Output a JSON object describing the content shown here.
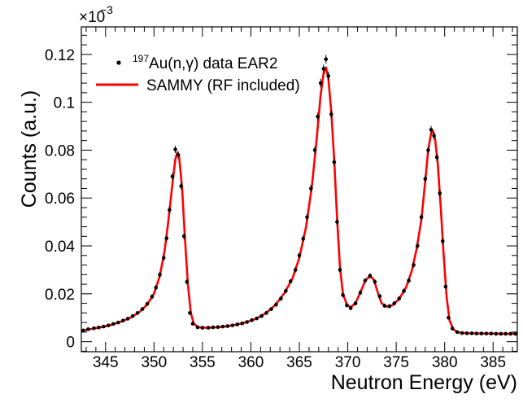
{
  "chart_data": {
    "type": "scatter",
    "xlabel": "Neutron Energy (eV)",
    "ylabel": "Counts (a.u.)",
    "y_multiplier": {
      "base": "×10",
      "exponent": "−3"
    },
    "xlim": [
      342.5,
      387.5
    ],
    "ylim": [
      -0.0042,
      0.1315
    ],
    "x_ticks": [
      345,
      350,
      355,
      360,
      365,
      370,
      375,
      380,
      385
    ],
    "x_tick_labels": [
      "345",
      "350",
      "355",
      "360",
      "365",
      "370",
      "375",
      "380",
      "385"
    ],
    "y_ticks": [
      0,
      0.02,
      0.04,
      0.06,
      0.08,
      0.1,
      0.12
    ],
    "y_tick_labels": [
      "0",
      "0.02",
      "0.04",
      "0.06",
      "0.08",
      "0.1",
      "0.12"
    ],
    "grid": false,
    "legend": {
      "placement": "top-left",
      "entries": [
        {
          "sup": "197",
          "text": "Au(n,γ) data EAR2",
          "marker": "point"
        },
        {
          "text": "SAMMY (RF included)",
          "marker": "line"
        }
      ]
    },
    "series": [
      {
        "name": "197Au(n,γ) data EAR2",
        "kind": "points",
        "color": "#000000",
        "points": [
          [
            342.7,
            0.0047,
            0.0006
          ],
          [
            343.2,
            0.0052,
            0.0006
          ],
          [
            343.8,
            0.0056,
            0.0006
          ],
          [
            344.3,
            0.0059,
            0.0006
          ],
          [
            344.8,
            0.0063,
            0.0006
          ],
          [
            345.3,
            0.0068,
            0.0006
          ],
          [
            345.8,
            0.0074,
            0.0006
          ],
          [
            346.3,
            0.008,
            0.0006
          ],
          [
            346.8,
            0.0088,
            0.0007
          ],
          [
            347.3,
            0.0096,
            0.0007
          ],
          [
            347.8,
            0.0107,
            0.0007
          ],
          [
            348.3,
            0.012,
            0.0008
          ],
          [
            348.8,
            0.0136,
            0.0008
          ],
          [
            349.3,
            0.0158,
            0.0009
          ],
          [
            349.8,
            0.0188,
            0.001
          ],
          [
            350.2,
            0.0226,
            0.001
          ],
          [
            350.6,
            0.028,
            0.0011
          ],
          [
            351.0,
            0.035,
            0.0012
          ],
          [
            351.3,
            0.0432,
            0.0013
          ],
          [
            351.6,
            0.055,
            0.0014
          ],
          [
            351.9,
            0.069,
            0.0014
          ],
          [
            352.2,
            0.0803,
            0.0015
          ],
          [
            352.5,
            0.078,
            0.0015
          ],
          [
            352.8,
            0.065,
            0.0014
          ],
          [
            353.1,
            0.044,
            0.0013
          ],
          [
            353.4,
            0.025,
            0.0011
          ],
          [
            353.7,
            0.012,
            0.0008
          ],
          [
            354.0,
            0.0075,
            0.0006
          ],
          [
            354.5,
            0.006,
            0.0006
          ],
          [
            355.0,
            0.0058,
            0.0006
          ],
          [
            355.6,
            0.0058,
            0.0006
          ],
          [
            356.1,
            0.006,
            0.0006
          ],
          [
            356.6,
            0.0061,
            0.0006
          ],
          [
            357.1,
            0.0063,
            0.0006
          ],
          [
            357.6,
            0.0065,
            0.0006
          ],
          [
            358.1,
            0.0068,
            0.0006
          ],
          [
            358.6,
            0.0072,
            0.0006
          ],
          [
            359.1,
            0.0076,
            0.0006
          ],
          [
            359.6,
            0.0082,
            0.0006
          ],
          [
            360.1,
            0.009,
            0.0007
          ],
          [
            360.6,
            0.0097,
            0.0007
          ],
          [
            361.1,
            0.0107,
            0.0007
          ],
          [
            361.6,
            0.012,
            0.0008
          ],
          [
            362.1,
            0.0136,
            0.0008
          ],
          [
            362.6,
            0.0155,
            0.0008
          ],
          [
            363.1,
            0.018,
            0.0009
          ],
          [
            363.6,
            0.0212,
            0.001
          ],
          [
            364.1,
            0.0252,
            0.001
          ],
          [
            364.6,
            0.03,
            0.0011
          ],
          [
            365.0,
            0.036,
            0.0012
          ],
          [
            365.4,
            0.043,
            0.0013
          ],
          [
            365.8,
            0.052,
            0.0014
          ],
          [
            366.2,
            0.064,
            0.0015
          ],
          [
            366.6,
            0.08,
            0.0016
          ],
          [
            366.9,
            0.094,
            0.0017
          ],
          [
            367.2,
            0.108,
            0.0018
          ],
          [
            367.5,
            0.114,
            0.0018
          ],
          [
            367.75,
            0.118,
            0.0018
          ],
          [
            368.0,
            0.111,
            0.0018
          ],
          [
            368.3,
            0.095,
            0.0017
          ],
          [
            368.6,
            0.075,
            0.0016
          ],
          [
            368.9,
            0.05,
            0.0014
          ],
          [
            369.2,
            0.03,
            0.0011
          ],
          [
            369.5,
            0.0195,
            0.001
          ],
          [
            369.9,
            0.0152,
            0.0009
          ],
          [
            370.3,
            0.014,
            0.0009
          ],
          [
            370.8,
            0.016,
            0.0009
          ],
          [
            371.3,
            0.0205,
            0.001
          ],
          [
            371.8,
            0.0255,
            0.001
          ],
          [
            372.3,
            0.0275,
            0.0011
          ],
          [
            372.8,
            0.025,
            0.001
          ],
          [
            373.3,
            0.019,
            0.0009
          ],
          [
            373.8,
            0.015,
            0.0009
          ],
          [
            374.3,
            0.0148,
            0.0009
          ],
          [
            374.8,
            0.016,
            0.0009
          ],
          [
            375.3,
            0.018,
            0.0009
          ],
          [
            375.8,
            0.0212,
            0.001
          ],
          [
            376.3,
            0.0255,
            0.001
          ],
          [
            376.8,
            0.032,
            0.0011
          ],
          [
            377.2,
            0.04,
            0.0012
          ],
          [
            377.6,
            0.052,
            0.0013
          ],
          [
            378.0,
            0.068,
            0.0015
          ],
          [
            378.3,
            0.08,
            0.0016
          ],
          [
            378.6,
            0.0885,
            0.0016
          ],
          [
            378.9,
            0.086,
            0.0016
          ],
          [
            379.2,
            0.077,
            0.0015
          ],
          [
            379.5,
            0.062,
            0.0014
          ],
          [
            379.8,
            0.042,
            0.0013
          ],
          [
            380.1,
            0.023,
            0.001
          ],
          [
            380.4,
            0.01,
            0.0007
          ],
          [
            380.8,
            0.0055,
            0.0006
          ],
          [
            381.3,
            0.004,
            0.0005
          ],
          [
            381.8,
            0.0036,
            0.0005
          ],
          [
            382.3,
            0.0035,
            0.0005
          ],
          [
            382.8,
            0.0035,
            0.0005
          ],
          [
            383.3,
            0.0034,
            0.0005
          ],
          [
            383.8,
            0.0034,
            0.0005
          ],
          [
            384.3,
            0.0034,
            0.0005
          ],
          [
            384.8,
            0.0034,
            0.0005
          ],
          [
            385.3,
            0.0033,
            0.0005
          ],
          [
            385.8,
            0.0033,
            0.0005
          ],
          [
            386.3,
            0.0033,
            0.0005
          ],
          [
            386.8,
            0.0033,
            0.0005
          ],
          [
            387.3,
            0.0033,
            0.0005
          ]
        ]
      },
      {
        "name": "SAMMY (RF included)",
        "kind": "line",
        "color": "#ff0000",
        "points": [
          [
            342.5,
            0.0045
          ],
          [
            343.5,
            0.0053
          ],
          [
            344.5,
            0.006
          ],
          [
            345.5,
            0.0069
          ],
          [
            346.5,
            0.0082
          ],
          [
            347.5,
            0.0098
          ],
          [
            348.5,
            0.0124
          ],
          [
            349.3,
            0.0155
          ],
          [
            350.0,
            0.02
          ],
          [
            350.6,
            0.0275
          ],
          [
            351.1,
            0.038
          ],
          [
            351.5,
            0.051
          ],
          [
            351.9,
            0.066
          ],
          [
            352.2,
            0.076
          ],
          [
            352.4,
            0.079
          ],
          [
            352.6,
            0.077
          ],
          [
            352.9,
            0.064
          ],
          [
            353.2,
            0.043
          ],
          [
            353.5,
            0.024
          ],
          [
            353.8,
            0.012
          ],
          [
            354.1,
            0.0075
          ],
          [
            354.6,
            0.006
          ],
          [
            355.5,
            0.0058
          ],
          [
            356.5,
            0.006
          ],
          [
            357.5,
            0.0064
          ],
          [
            358.5,
            0.0071
          ],
          [
            359.5,
            0.0081
          ],
          [
            360.5,
            0.0095
          ],
          [
            361.5,
            0.0118
          ],
          [
            362.5,
            0.0152
          ],
          [
            363.5,
            0.0205
          ],
          [
            364.3,
            0.0265
          ],
          [
            365.0,
            0.035
          ],
          [
            365.7,
            0.048
          ],
          [
            366.3,
            0.065
          ],
          [
            366.8,
            0.085
          ],
          [
            367.2,
            0.103
          ],
          [
            367.5,
            0.112
          ],
          [
            367.75,
            0.1145
          ],
          [
            368.0,
            0.11
          ],
          [
            368.3,
            0.096
          ],
          [
            368.6,
            0.076
          ],
          [
            368.9,
            0.051
          ],
          [
            369.2,
            0.031
          ],
          [
            369.5,
            0.02
          ],
          [
            369.9,
            0.0155
          ],
          [
            370.3,
            0.0143
          ],
          [
            370.8,
            0.0162
          ],
          [
            371.3,
            0.0205
          ],
          [
            371.8,
            0.0255
          ],
          [
            372.3,
            0.0275
          ],
          [
            372.7,
            0.0258
          ],
          [
            373.1,
            0.0205
          ],
          [
            373.5,
            0.016
          ],
          [
            374.0,
            0.0146
          ],
          [
            374.6,
            0.0152
          ],
          [
            375.3,
            0.0178
          ],
          [
            376.0,
            0.0225
          ],
          [
            376.6,
            0.0295
          ],
          [
            377.1,
            0.0385
          ],
          [
            377.6,
            0.051
          ],
          [
            378.0,
            0.067
          ],
          [
            378.3,
            0.08
          ],
          [
            378.6,
            0.087
          ],
          [
            378.8,
            0.088
          ],
          [
            379.0,
            0.085
          ],
          [
            379.3,
            0.074
          ],
          [
            379.6,
            0.056
          ],
          [
            379.9,
            0.036
          ],
          [
            380.2,
            0.019
          ],
          [
            380.5,
            0.009
          ],
          [
            380.9,
            0.005
          ],
          [
            381.5,
            0.0038
          ],
          [
            382.5,
            0.0035
          ],
          [
            384.0,
            0.0034
          ],
          [
            386.0,
            0.0033
          ],
          [
            387.5,
            0.0033
          ]
        ]
      }
    ]
  }
}
